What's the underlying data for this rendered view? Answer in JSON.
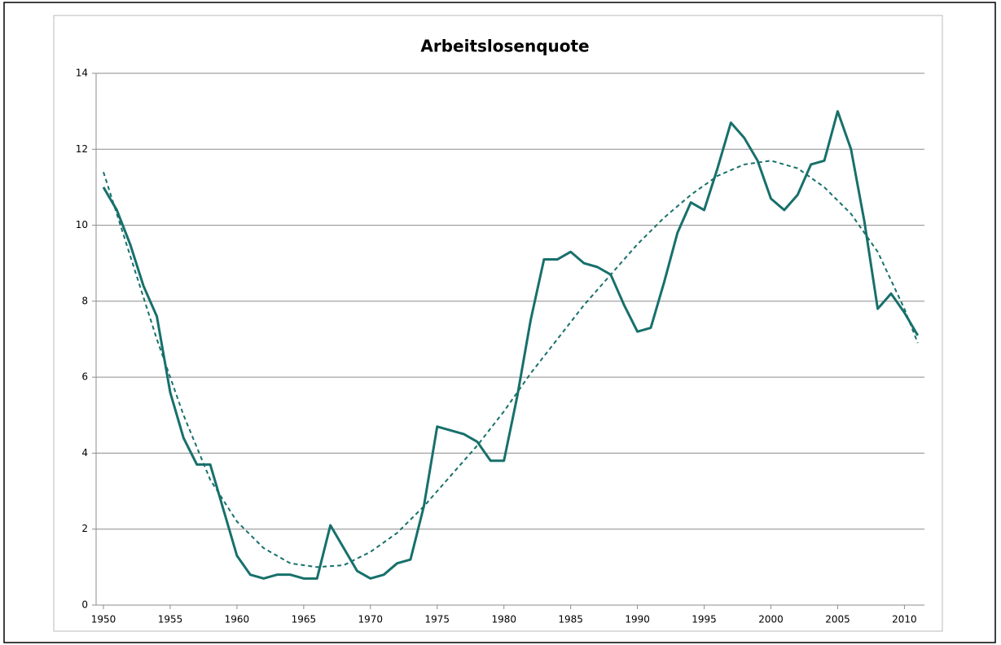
{
  "chart_data": {
    "type": "line",
    "title": "Arbeitslosenquote",
    "x": [
      1950,
      1951,
      1952,
      1953,
      1954,
      1955,
      1956,
      1957,
      1958,
      1959,
      1960,
      1961,
      1962,
      1963,
      1964,
      1965,
      1966,
      1967,
      1968,
      1969,
      1970,
      1971,
      1972,
      1973,
      1974,
      1975,
      1976,
      1977,
      1978,
      1979,
      1980,
      1981,
      1982,
      1983,
      1984,
      1985,
      1986,
      1987,
      1988,
      1989,
      1990,
      1991,
      1992,
      1993,
      1994,
      1995,
      1996,
      1997,
      1998,
      1999,
      2000,
      2001,
      2002,
      2003,
      2004,
      2005,
      2006,
      2007,
      2008,
      2009,
      2010,
      2011
    ],
    "series": [
      {
        "color": "#17706b",
        "values": [
          11.0,
          10.4,
          9.5,
          8.4,
          7.6,
          5.6,
          4.4,
          3.7,
          3.7,
          2.5,
          1.3,
          0.8,
          0.7,
          0.8,
          0.8,
          0.7,
          0.7,
          2.1,
          1.5,
          0.9,
          0.7,
          0.8,
          1.1,
          1.2,
          2.6,
          4.7,
          4.6,
          4.5,
          4.3,
          3.8,
          3.8,
          5.5,
          7.5,
          9.1,
          9.1,
          9.3,
          9.0,
          8.9,
          8.7,
          7.9,
          7.2,
          7.3,
          8.5,
          9.8,
          10.6,
          10.4,
          11.5,
          12.7,
          12.3,
          11.7,
          10.7,
          10.4,
          10.8,
          11.6,
          11.7,
          13.0,
          12.0,
          10.1,
          7.8,
          8.2,
          7.7,
          7.1
        ]
      },
      {
        "color": "#17706b",
        "dashed": true,
        "x": [
          1950,
          1952,
          1954,
          1956,
          1958,
          1960,
          1962,
          1964,
          1966,
          1968,
          1970,
          1972,
          1974,
          1976,
          1978,
          1980,
          1982,
          1984,
          1986,
          1988,
          1990,
          1992,
          1994,
          1996,
          1998,
          2000,
          2002,
          2004,
          2006,
          2008,
          2010,
          2011
        ],
        "values": [
          11.4,
          9.2,
          7.0,
          5.0,
          3.3,
          2.2,
          1.5,
          1.1,
          1.0,
          1.05,
          1.4,
          1.9,
          2.6,
          3.4,
          4.2,
          5.1,
          6.1,
          7.0,
          7.9,
          8.7,
          9.5,
          10.2,
          10.8,
          11.3,
          11.6,
          11.7,
          11.5,
          11.0,
          10.3,
          9.3,
          7.8,
          6.9
        ]
      }
    ],
    "xlim": [
      1949.45,
      2011.5
    ],
    "xticks": [
      1950,
      1955,
      1960,
      1965,
      1970,
      1975,
      1980,
      1985,
      1990,
      1995,
      2000,
      2005,
      2010
    ],
    "ylim": [
      0,
      14
    ],
    "yticks": [
      0,
      2,
      4,
      6,
      8,
      10,
      12,
      14
    ],
    "grid": true
  }
}
